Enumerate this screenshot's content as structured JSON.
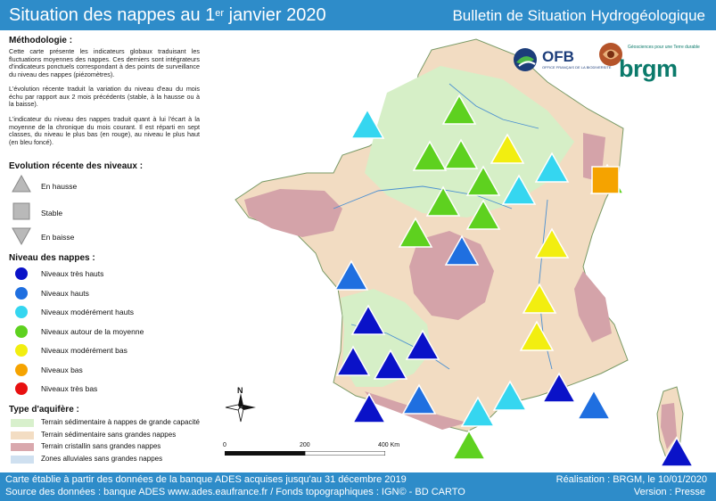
{
  "header": {
    "title_main": "Situation des nappes au 1",
    "title_sup": "er",
    "title_rest": " janvier 2020",
    "bulletin": "Bulletin de Situation Hydrogéologique"
  },
  "legend": {
    "methodology_title": "Méthodologie :",
    "methodology_p1": "Cette carte présente les indicateurs globaux traduisant les fluctuations moyennes des nappes. Ces derniers sont intégrateurs d'indicateurs ponctuels correspondant à des points de surveillance du niveau des nappes (piézomètres).",
    "methodology_p2": "L'évolution récente traduit la variation du niveau d'eau du mois échu par rapport aux 2 mois précédents (stable, à la hausse ou à la baisse).",
    "methodology_p3": "L'indicateur du niveau des nappes traduit quant à lui l'écart à la moyenne de la chronique du mois courant. Il est réparti en sept classes, du niveau le plus bas (en rouge), au niveau le plus haut (en bleu foncé).",
    "evolution_title": "Evolution récente des niveaux :",
    "evolution": [
      {
        "label": "En hausse",
        "icon": "triangle-up"
      },
      {
        "label": "Stable",
        "icon": "square"
      },
      {
        "label": "En baisse",
        "icon": "triangle-down"
      }
    ],
    "levels_title": "Niveau des nappes :",
    "levels": [
      {
        "label": "Niveaux très hauts",
        "color": "#0a12c8"
      },
      {
        "label": "Niveaux hauts",
        "color": "#1f6fe0"
      },
      {
        "label": "Niveaux modérément hauts",
        "color": "#35d6f0"
      },
      {
        "label": "Niveaux autour de la moyenne",
        "color": "#5ed11f"
      },
      {
        "label": "Niveaux modérément bas",
        "color": "#f2ee10"
      },
      {
        "label": "Niveaux bas",
        "color": "#f5a300"
      },
      {
        "label": "Niveaux très bas",
        "color": "#e81010"
      }
    ],
    "aquifer_title": "Type d'aquifère :",
    "aquifers": [
      {
        "label": "Terrain sédimentaire à nappes de grande capacité",
        "color": "#d8f0cc"
      },
      {
        "label": "Terrain sédimentaire sans grandes nappes",
        "color": "#f3ddc3"
      },
      {
        "label": "Terrain cristallin sans grandes nappes",
        "color": "#d9a8ad"
      },
      {
        "label": "Zones alluviales sans grandes nappes",
        "color": "#cfe0f0"
      }
    ]
  },
  "logos": {
    "ofb": "OFB",
    "ofb_sub": "OFFICE FRANÇAIS DE LA BIODIVERSITÉ",
    "brgm": "brgm",
    "brgm_sub": "Géosciences pour une Terre durable"
  },
  "map": {
    "north": "N",
    "scale_labels": [
      "0",
      "200",
      "400 Km"
    ],
    "indicators": [
      {
        "trend": "up",
        "level": "mod-high"
      },
      {
        "trend": "up",
        "level": "average"
      },
      {
        "trend": "up",
        "level": "average"
      },
      {
        "trend": "up",
        "level": "average"
      },
      {
        "trend": "up",
        "level": "mod-low"
      },
      {
        "trend": "up",
        "level": "mod-high"
      },
      {
        "trend": "up",
        "level": "average"
      },
      {
        "trend": "up",
        "level": "average"
      },
      {
        "trend": "up",
        "level": "mod-high"
      },
      {
        "trend": "up",
        "level": "average"
      },
      {
        "trend": "stable",
        "level": "low"
      },
      {
        "trend": "up",
        "level": "average"
      },
      {
        "trend": "up",
        "level": "average"
      },
      {
        "trend": "up",
        "level": "high"
      },
      {
        "trend": "up",
        "level": "mod-low"
      },
      {
        "trend": "up",
        "level": "high"
      },
      {
        "trend": "up",
        "level": "mod-low"
      },
      {
        "trend": "up",
        "level": "very-high"
      },
      {
        "trend": "up",
        "level": "mod-low"
      },
      {
        "trend": "up",
        "level": "very-high"
      },
      {
        "trend": "up",
        "level": "very-high"
      },
      {
        "trend": "up",
        "level": "very-high"
      },
      {
        "trend": "up",
        "level": "very-high"
      },
      {
        "trend": "up",
        "level": "high"
      },
      {
        "trend": "up",
        "level": "very-high"
      },
      {
        "trend": "up",
        "level": "mod-high"
      },
      {
        "trend": "up",
        "level": "mod-high"
      },
      {
        "trend": "up",
        "level": "high"
      },
      {
        "trend": "up",
        "level": "average"
      },
      {
        "trend": "up",
        "level": "very-high"
      }
    ]
  },
  "footer": {
    "line1": "Carte établie à partir des données de la banque ADES acquises jusqu'au 31 décembre 2019",
    "line2": "Source des données : banque ADES www.ades.eaufrance.fr / Fonds topographiques : IGN© - BD CARTO",
    "realisation": "Réalisation : BRGM, le 10/01/2020",
    "version": "Version : Presse"
  }
}
